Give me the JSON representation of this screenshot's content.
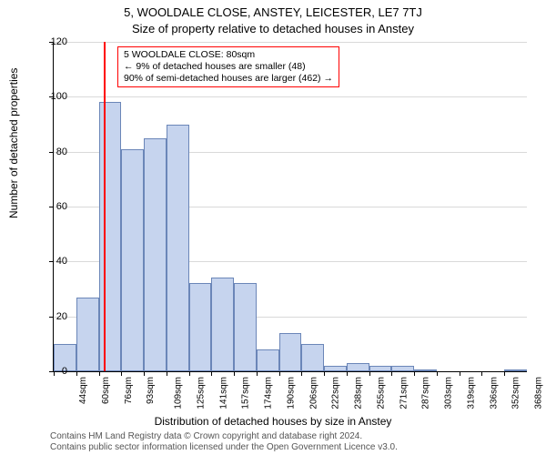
{
  "chart": {
    "type": "histogram",
    "title_main": "5, WOOLDALE CLOSE, ANSTEY, LEICESTER, LE7 7TJ",
    "title_sub": "Size of property relative to detached houses in Anstey",
    "y_label": "Number of detached properties",
    "x_label": "Distribution of detached houses by size in Anstey",
    "title_fontsize": 13,
    "label_fontsize": 12,
    "tick_fontsize": 11,
    "x_tick_fontsize": 10,
    "background_color": "#ffffff",
    "grid_color": "#d9d9d9",
    "axis_color": "#000000",
    "bar_fill": "#c6d4ee",
    "bar_border": "#6b86b8",
    "marker_color": "#ff0000",
    "annotation_border": "#ff0000",
    "y": {
      "min": 0,
      "max": 120,
      "ticks": [
        0,
        20,
        40,
        60,
        80,
        100,
        120
      ]
    },
    "x_tick_labels": [
      "44sqm",
      "60sqm",
      "76sqm",
      "93sqm",
      "109sqm",
      "125sqm",
      "141sqm",
      "157sqm",
      "174sqm",
      "190sqm",
      "206sqm",
      "222sqm",
      "238sqm",
      "255sqm",
      "271sqm",
      "287sqm",
      "303sqm",
      "319sqm",
      "336sqm",
      "352sqm",
      "368sqm"
    ],
    "bars": [
      {
        "value": 10
      },
      {
        "value": 27
      },
      {
        "value": 98
      },
      {
        "value": 81
      },
      {
        "value": 85
      },
      {
        "value": 90
      },
      {
        "value": 32
      },
      {
        "value": 34
      },
      {
        "value": 32
      },
      {
        "value": 8
      },
      {
        "value": 14
      },
      {
        "value": 10
      },
      {
        "value": 2
      },
      {
        "value": 3
      },
      {
        "value": 2
      },
      {
        "value": 2
      },
      {
        "value": 0.5
      },
      {
        "value": 0
      },
      {
        "value": 0
      },
      {
        "value": 0
      },
      {
        "value": 0.5
      }
    ],
    "marker_position_sqm": 80,
    "annotation": {
      "line1": "5 WOOLDALE CLOSE: 80sqm",
      "line2": "← 9% of detached houses are smaller (48)",
      "line3": "90% of semi-detached houses are larger (462) →"
    },
    "footer_line1": "Contains HM Land Registry data © Crown copyright and database right 2024.",
    "footer_line2": "Contains public sector information licensed under the Open Government Licence v3.0."
  }
}
